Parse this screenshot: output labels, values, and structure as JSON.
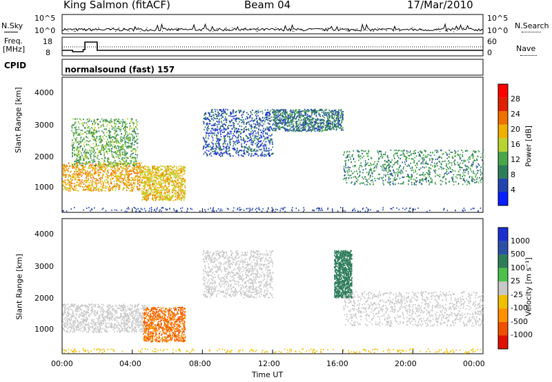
{
  "header": {
    "station": "King Salmon (fitACF)",
    "beam": "Beam 04",
    "date": "17/Mar/2010"
  },
  "noise_panel": {
    "left_label": "N.Sky",
    "right_label": "N.Search",
    "left_ticks": [
      "10^5",
      "10^0"
    ],
    "right_ticks": [
      "10^5",
      "10^0"
    ]
  },
  "freq_panel": {
    "left_label_line1": "Freq.",
    "left_label_line2": "[MHz]",
    "right_label": "Nave",
    "left_ticks": [
      "18",
      "8"
    ],
    "right_ticks": [
      "60",
      "0"
    ]
  },
  "cpid": {
    "label": "CPID",
    "value": "normalsound (fast) 157"
  },
  "power_panel": {
    "ylabel": "Slant Range [km]",
    "yticks": [
      "1000",
      "2000",
      "3000",
      "4000"
    ],
    "colorbar_label": "Power [dB]",
    "colorbar_ticks": [
      "4",
      "8",
      "12",
      "16",
      "20",
      "24",
      "28"
    ],
    "colors": [
      "#0a1eff",
      "#2244b0",
      "#2e7d5a",
      "#4aa84a",
      "#b8d430",
      "#f0b000",
      "#f07000",
      "#e02000",
      "#ff0000"
    ]
  },
  "velocity_panel": {
    "ylabel": "Slant Range [km]",
    "yticks": [
      "1000",
      "2000",
      "3000",
      "4000"
    ],
    "colorbar_label": "Velocity [m s⁻¹]",
    "colorbar_ticks": [
      "1000",
      "500",
      "100",
      "25",
      "-25",
      "-100",
      "-500",
      "-1000"
    ],
    "colors": [
      "#1b2fd0",
      "#2a50a8",
      "#2e7d5a",
      "#4cc24c",
      "#c8c8c8",
      "#f0c000",
      "#ff9000",
      "#f05000",
      "#e01000"
    ]
  },
  "x_axis": {
    "label": "Time UT",
    "ticks": [
      "00:00",
      "04:00",
      "08:00",
      "12:00",
      "16:00",
      "20:00",
      "00:00"
    ]
  },
  "chart_data": {
    "type": "heatmap",
    "x_range_hours": [
      0,
      24
    ],
    "y_range_km": [
      200,
      4500
    ],
    "freq_steps_mhz": [
      {
        "t": 0.0,
        "f": 10.5
      },
      {
        "t": 0.6,
        "f": 9.5
      },
      {
        "t": 1.2,
        "f": 11.0
      },
      {
        "t": 1.3,
        "f": 16.5
      },
      {
        "t": 2.0,
        "f": 10.5
      },
      {
        "t": 24.0,
        "f": 10.5
      }
    ],
    "power_regions": [
      {
        "t0": 0.0,
        "t1": 4.5,
        "r0": 900,
        "r1": 1800,
        "level": 20
      },
      {
        "t0": 0.5,
        "t1": 4.3,
        "r0": 1700,
        "r1": 3200,
        "level": 12
      },
      {
        "t0": 4.5,
        "t1": 7.0,
        "r0": 600,
        "r1": 1700,
        "level": 18
      },
      {
        "t0": 8.0,
        "t1": 12.0,
        "r0": 2000,
        "r1": 3500,
        "level": 6
      },
      {
        "t0": 12.0,
        "t1": 16.0,
        "r0": 2800,
        "r1": 3500,
        "level": 8
      },
      {
        "t0": 16.0,
        "t1": 24.0,
        "r0": 1100,
        "r1": 2200,
        "level": 10
      }
    ],
    "velocity_regions": [
      {
        "t0": 0.0,
        "t1": 4.8,
        "r0": 900,
        "r1": 1800,
        "v": 0
      },
      {
        "t0": 4.6,
        "t1": 7.0,
        "r0": 600,
        "r1": 1700,
        "v": -300
      },
      {
        "t0": 8.0,
        "t1": 12.0,
        "r0": 2000,
        "r1": 3500,
        "v": 0
      },
      {
        "t0": 15.5,
        "t1": 16.5,
        "r0": 2000,
        "r1": 3500,
        "v": 150
      },
      {
        "t0": 16.0,
        "t1": 24.0,
        "r0": 1100,
        "r1": 2200,
        "v": 0
      }
    ]
  }
}
